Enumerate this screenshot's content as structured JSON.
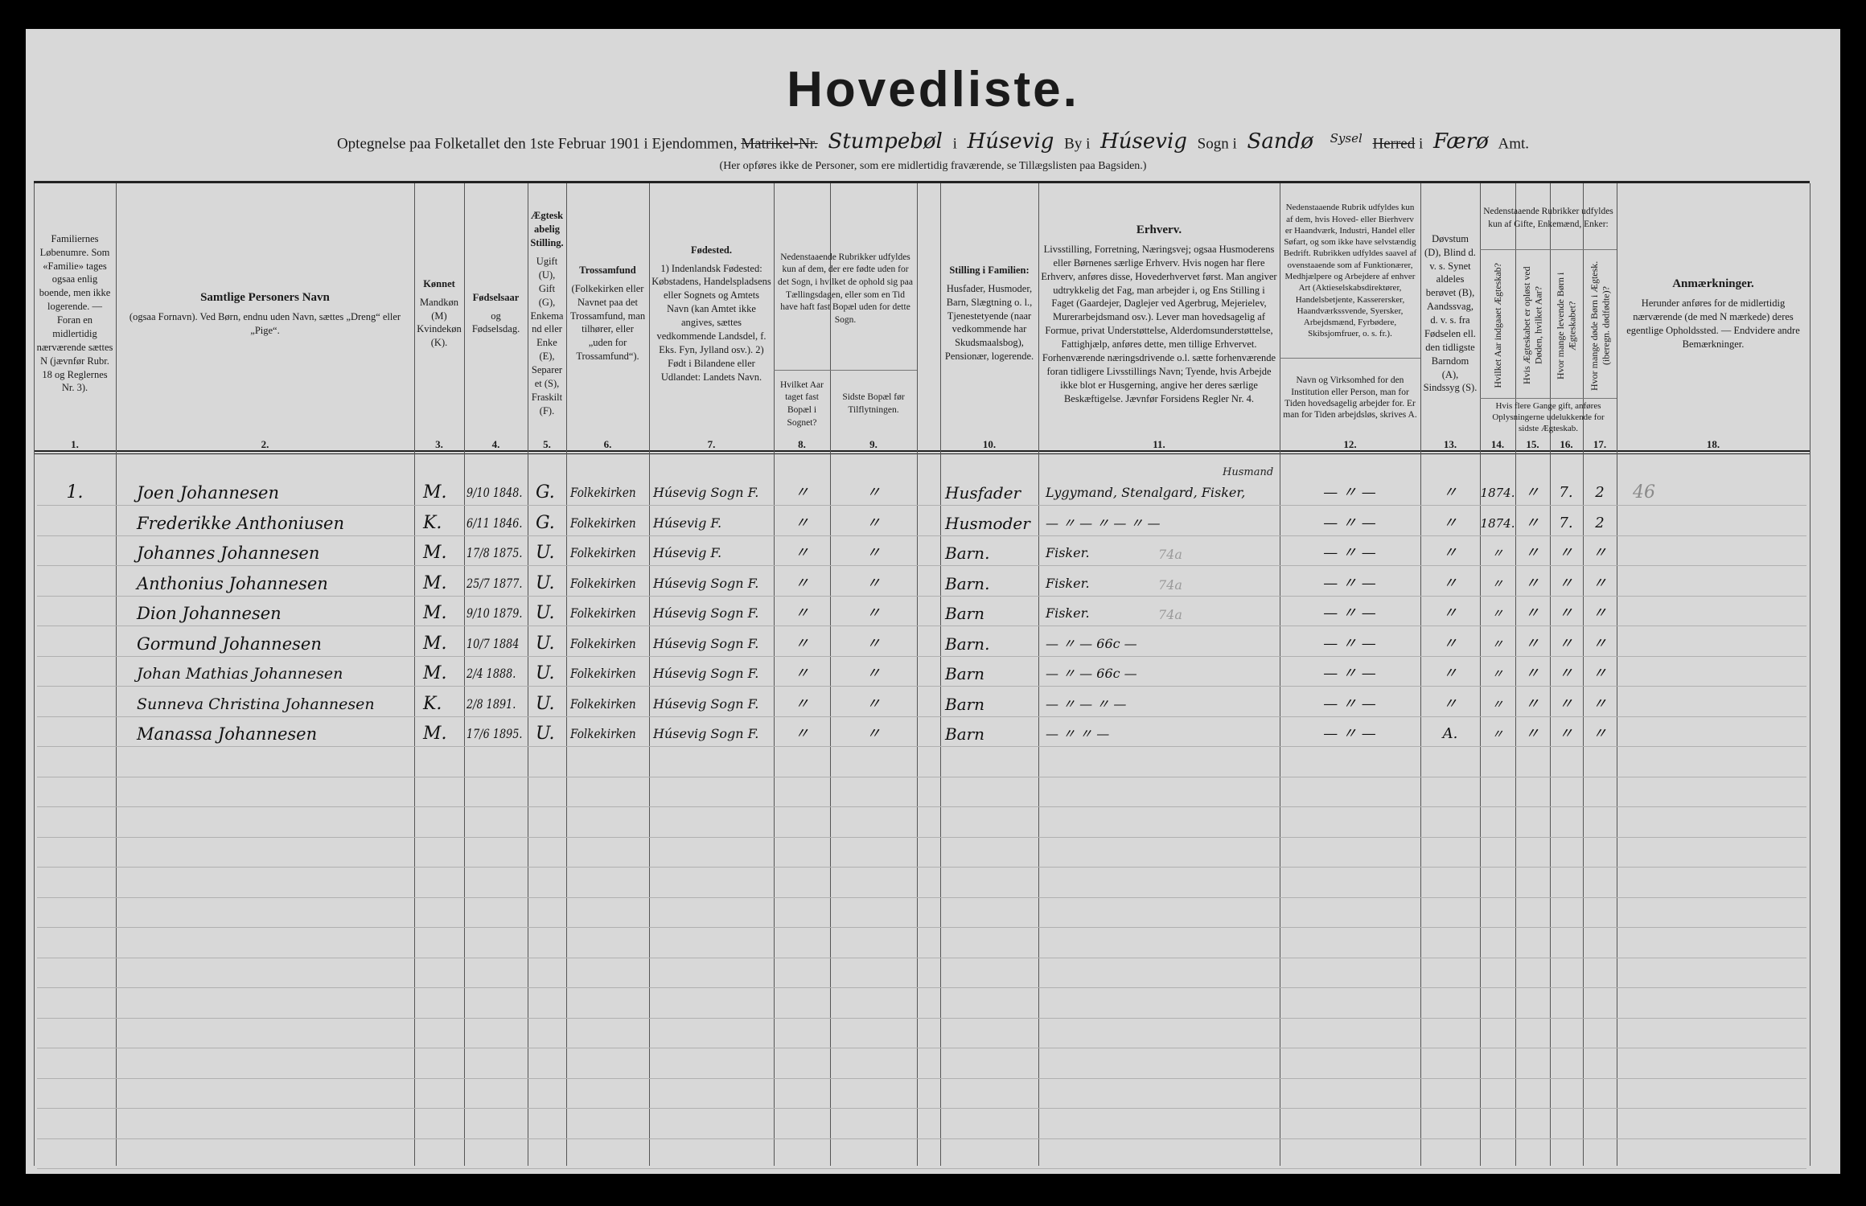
{
  "header": {
    "title": "Hovedliste.",
    "line_prefix": "Optegnelse paa Folketallet den 1ste Februar 1901 i Ejendommen,",
    "matrikel_label": "Matrikel-Nr.",
    "property_value": "Stumpebøl",
    "i1": "i",
    "place_value": "Húsevig",
    "by_label": "By i",
    "town_value": "Húsevig",
    "sogn_label": "Sogn i",
    "parish_value": "Sandø",
    "sysel_value": "Sysel",
    "herred_label": "Herred",
    "i2": "i",
    "amt_value": "Færø",
    "amt_label": "Amt.",
    "note": "(Her opføres ikke de Personer, som ere midlertidig fraværende, se Tillægslisten paa Bagsiden.)"
  },
  "columns": [
    {
      "num": "1.",
      "text": "Familiernes Løbenumre. Som «Familie» tages ogsaa enlig boende, men ikke logerende. — Foran en midlertidig nærværende sættes N (jævnfør Rubr. 18 og Reglernes Nr. 3)."
    },
    {
      "num": "2.",
      "title": "Samtlige Personers Navn",
      "text": "(ogsaa Fornavn). Ved Børn, endnu uden Navn, sættes „Dreng“ eller „Pige“."
    },
    {
      "num": "3.",
      "title": "Kønnet",
      "text": "Mandkøn (M) Kvindekøn (K)."
    },
    {
      "num": "4.",
      "title": "Fødselsaar",
      "text": "og Fødselsdag."
    },
    {
      "num": "5.",
      "title": "Ægteskabelig Stilling.",
      "text": "Ugift (U), Gift (G), Enkemand eller Enke (E), Separeret (S), Fraskilt (F)."
    },
    {
      "num": "6.",
      "title": "Trossamfund",
      "text": "(Folkekirken eller Navnet paa det Trossamfund, man tilhører, eller „uden for Trossamfund“)."
    },
    {
      "num": "7.",
      "title": "Fødested.",
      "text": "1) Indenlandsk Fødested: Købstadens, Handelspladsens eller Sognets og Amtets Navn (kan Amtet ikke angives, sættes vedkommende Landsdel, f. Eks. Fyn, Jylland osv.). 2) Født i Bilandene eller Udlandet: Landets Navn."
    },
    {
      "num": "8.",
      "group": "Nedenstaaende Rubrikker udfyldes kun af dem, der ere fødte uden for det Sogn, i hvilket de ophold sig paa Tællingsdagen, eller som en Tid have haft fast Bopæl uden for dette Sogn.",
      "text": "Hvilket Aar taget fast Bopæl i Sognet?"
    },
    {
      "num": "9.",
      "text": "Sidste Bopæl før Tilflytningen."
    },
    {
      "num": "10.",
      "title": "Stilling i Familien:",
      "text": "Husfader, Husmoder, Barn, Slægtning o. l., Tjenestetyende (naar vedkommende har Skudsmaalsbog), Pensionær, logerende."
    },
    {
      "num": "11.",
      "title": "Erhverv.",
      "text": "Livsstilling, Forretning, Næringsvej; ogsaa Husmoderens eller Børnenes særlige Erhverv. Hvis nogen har flere Erhverv, anføres disse, Hovederhvervet først. Man angiver udtrykkelig det Fag, man arbejder i, og Ens Stilling i Faget (Gaardejer, Daglejer ved Agerbrug, Mejerielev, Murerarbejdsmand osv.). Lever man hovedsagelig af Formue, privat Understøttelse, Alderdomsunderstøttelse, Fattighjælp, anføres dette, men tillige Erhvervet. Forhenværende næringsdrivende o.l. sætte forhenværende foran tidligere Livsstillings Navn; Tyende, hvis Arbejde ikke blot er Husgerning, angive her deres særlige Beskæftigelse. Jævnfør Forsidens Regler Nr. 4."
    },
    {
      "num": "12.",
      "group": "Nedenstaaende Rubrik udfyldes kun af dem, hvis Hoved- eller Bierhverv er Haandværk, Industri, Handel eller Søfart, og som ikke have selvstændig Bedrift. Rubrikken udfyldes saavel af ovenstaaende som af Funktionærer, Medhjælpere og Arbejdere af enhver Art (Aktieselskabsdirektører, Handelsbetjente, Kasserersker, Haandværkssvende, Syersker, Arbejdsmænd, Fyrbødere, Skibsjomfruer, o. s. fr.).",
      "text": "Navn og Virksomhed for den Institution eller Person, man for Tiden hovedsagelig arbejder for. Er man for Tiden arbejdsløs, skrives A."
    },
    {
      "num": "13.",
      "text": "Døvstum (D), Blind d. v. s. Synet aldeles berøvet (B), Aandssvag, d. v. s. fra Fødselen ell. den tidligste Barndom (A), Sindssyg (S)."
    },
    {
      "num": "14.",
      "group": "Nedenstaaende Rubrikker udfyldes kun af Gifte, Enkemænd, Enker:",
      "text": "Hvilket Aar indgaaet Ægteskab?"
    },
    {
      "num": "15.",
      "text": "Hvis Ægteskabet er opløst ved Døden, hvilket Aar?"
    },
    {
      "num": "16.",
      "text": "Hvor mange levende Børn i Ægteskabet?"
    },
    {
      "num": "17.",
      "text": "Hvor mange døde Børn i Ægtesk. (iberegn. dødfødte)?"
    },
    {
      "num": "18.",
      "title": "Anmærkninger.",
      "text": "Herunder anføres for de midlertidig nærværende (de med N mærkede) deres egentlige Opholdssted. — Endvidere andre Bemærkninger."
    }
  ],
  "group_14_17_footnote": "Hvis flere Gange gift, anføres Oplysningerne udelukkende for sidste Ægteskab.",
  "rows": [
    {
      "c1": "1.",
      "c2": "Joen Johannesen",
      "c3": "M.",
      "c4": "9/10 1848.",
      "c5": "G.",
      "c6": "Folkekirken",
      "c7": "Húsevig Sogn F.",
      "c8": "〃",
      "c9": "〃",
      "c10": "Husfader",
      "c11": "Lygymand, Stenalgard, Fisker,",
      "c11_note": "Husmand",
      "c12": "— 〃 —",
      "c13": "〃",
      "c14": "1874.",
      "c15": "〃",
      "c16": "7.",
      "c17": "2",
      "c18": "46"
    },
    {
      "c1": "",
      "c2": "Frederikke Anthoniusen",
      "c3": "K.",
      "c4": "6/11 1846.",
      "c5": "G.",
      "c6": "Folkekirken",
      "c7": "Húsevig F.",
      "c8": "〃",
      "c9": "〃",
      "c10": "Husmoder",
      "c11": "— 〃 — 〃 — 〃 —",
      "c11_note": "",
      "c12": "— 〃 —",
      "c13": "〃",
      "c14": "1874.",
      "c15": "〃",
      "c16": "7.",
      "c17": "2",
      "c18": ""
    },
    {
      "c1": "",
      "c2": "Johannes Johannesen",
      "c3": "M.",
      "c4": "17/8 1875.",
      "c5": "U.",
      "c6": "Folkekirken",
      "c7": "Húsevig F.",
      "c8": "〃",
      "c9": "〃",
      "c10": "Barn.",
      "c11": "Fisker.",
      "c11_note": "74a",
      "c12": "— 〃 —",
      "c13": "〃",
      "c14": "〃",
      "c15": "〃",
      "c16": "〃",
      "c17": "〃",
      "c18": ""
    },
    {
      "c1": "",
      "c2": "Anthonius Johannesen",
      "c3": "M.",
      "c4": "25/7 1877.",
      "c5": "U.",
      "c6": "Folkekirken",
      "c7": "Húsevig Sogn F.",
      "c8": "〃",
      "c9": "〃",
      "c10": "Barn.",
      "c11": "Fisker.",
      "c11_note": "74a",
      "c12": "— 〃 —",
      "c13": "〃",
      "c14": "〃",
      "c15": "〃",
      "c16": "〃",
      "c17": "〃",
      "c18": ""
    },
    {
      "c1": "",
      "c2": "Dion Johannesen",
      "c3": "M.",
      "c4": "9/10 1879.",
      "c5": "U.",
      "c6": "Folkekirken",
      "c7": "Húsevig Sogn F.",
      "c8": "〃",
      "c9": "〃",
      "c10": "Barn",
      "c11": "Fisker.",
      "c11_note": "74a",
      "c12": "— 〃 —",
      "c13": "〃",
      "c14": "〃",
      "c15": "〃",
      "c16": "〃",
      "c17": "〃",
      "c18": ""
    },
    {
      "c1": "",
      "c2": "Gormund Johannesen",
      "c3": "M.",
      "c4": "10/7 1884",
      "c5": "U.",
      "c6": "Folkekirken",
      "c7": "Húsevig Sogn F.",
      "c8": "〃",
      "c9": "〃",
      "c10": "Barn.",
      "c11": "— 〃 — 66c —",
      "c11_note": "",
      "c12": "— 〃 —",
      "c13": "〃",
      "c14": "〃",
      "c15": "〃",
      "c16": "〃",
      "c17": "〃",
      "c18": ""
    },
    {
      "c1": "",
      "c2": "Johan Mathias Johannesen",
      "c3": "M.",
      "c4": "2/4 1888.",
      "c5": "U.",
      "c6": "Folkekirken",
      "c7": "Húsevig Sogn F.",
      "c8": "〃",
      "c9": "〃",
      "c10": "Barn",
      "c11": "— 〃 — 66c —",
      "c11_note": "",
      "c12": "— 〃 —",
      "c13": "〃",
      "c14": "〃",
      "c15": "〃",
      "c16": "〃",
      "c17": "〃",
      "c18": ""
    },
    {
      "c1": "",
      "c2": "Sunneva Christina Johannesen",
      "c3": "K.",
      "c4": "2/8 1891.",
      "c5": "U.",
      "c6": "Folkekirken",
      "c7": "Húsevig Sogn F.",
      "c8": "〃",
      "c9": "〃",
      "c10": "Barn",
      "c11": "— 〃 — 〃 —",
      "c11_note": "",
      "c12": "— 〃 —",
      "c13": "〃",
      "c14": "〃",
      "c15": "〃",
      "c16": "〃",
      "c17": "〃",
      "c18": ""
    },
    {
      "c1": "",
      "c2": "Manassa Johannesen",
      "c3": "M.",
      "c4": "17/6 1895.",
      "c5": "U.",
      "c6": "Folkekirken",
      "c7": "Húsevig Sogn F.",
      "c8": "〃",
      "c9": "〃",
      "c10": "Barn",
      "c11": "— 〃 〃 —",
      "c11_note": "",
      "c12": "— 〃 —",
      "c13": "A.",
      "c14": "〃",
      "c15": "〃",
      "c16": "〃",
      "c17": "〃",
      "c18": ""
    }
  ]
}
